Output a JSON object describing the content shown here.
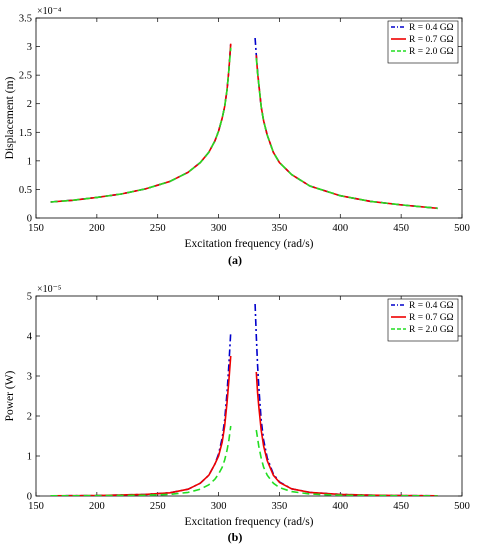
{
  "chart_data": [
    {
      "type": "line",
      "caption": "(a)",
      "xlabel": "Excitation frequency (rad/s)",
      "ylabel": "Displacement (m)",
      "y_multiplier": "×10⁻⁴",
      "xlim": [
        150,
        500
      ],
      "ylim": [
        0,
        3.5
      ],
      "xticks": [
        "150",
        "200",
        "250",
        "300",
        "350",
        "400",
        "450",
        "500"
      ],
      "yticks": [
        "0",
        "0.5",
        "1",
        "1.5",
        "2",
        "2.5",
        "3",
        "3.5"
      ],
      "legend_position": "top-right",
      "series": [
        {
          "name": "R = 0.4 GΩ",
          "color": "#0000cc",
          "style": "dash-dot",
          "segments": [
            {
              "x": [
                162,
                180,
                200,
                220,
                240,
                260,
                275,
                285,
                292,
                297,
                300,
                303,
                305,
                307,
                308.5,
                310
              ],
              "y": [
                0.28,
                0.31,
                0.36,
                0.42,
                0.51,
                0.64,
                0.8,
                0.97,
                1.15,
                1.35,
                1.52,
                1.75,
                1.95,
                2.25,
                2.6,
                3.05
              ]
            },
            {
              "x": [
                330,
                331.5,
                333,
                335,
                337,
                340,
                345,
                350,
                360,
                375,
                400,
                425,
                450,
                480
              ],
              "y": [
                3.15,
                2.7,
                2.35,
                1.95,
                1.7,
                1.45,
                1.15,
                0.97,
                0.76,
                0.56,
                0.39,
                0.29,
                0.23,
                0.17
              ]
            }
          ]
        },
        {
          "name": "R = 0.7 GΩ",
          "color": "#ee0000",
          "style": "solid",
          "segments": [
            {
              "x": [
                162,
                180,
                200,
                220,
                240,
                260,
                275,
                285,
                292,
                297,
                300,
                303,
                305,
                307,
                308.5,
                310
              ],
              "y": [
                0.28,
                0.31,
                0.36,
                0.42,
                0.51,
                0.64,
                0.8,
                0.97,
                1.15,
                1.35,
                1.52,
                1.75,
                1.95,
                2.25,
                2.6,
                3.05
              ]
            },
            {
              "x": [
                331,
                332,
                333,
                335,
                337,
                340,
                345,
                350,
                360,
                375,
                400,
                425,
                450,
                480
              ],
              "y": [
                2.85,
                2.55,
                2.35,
                1.95,
                1.7,
                1.45,
                1.15,
                0.97,
                0.76,
                0.56,
                0.39,
                0.29,
                0.23,
                0.17
              ]
            }
          ]
        },
        {
          "name": "R = 2.0 GΩ",
          "color": "#22dd22",
          "style": "dashed",
          "segments": [
            {
              "x": [
                162,
                180,
                200,
                220,
                240,
                260,
                275,
                285,
                292,
                297,
                300,
                303,
                305,
                307,
                308.5,
                310
              ],
              "y": [
                0.28,
                0.31,
                0.36,
                0.42,
                0.51,
                0.64,
                0.8,
                0.97,
                1.15,
                1.35,
                1.52,
                1.75,
                1.95,
                2.25,
                2.6,
                2.98
              ]
            },
            {
              "x": [
                331,
                332,
                333,
                335,
                337,
                340,
                345,
                350,
                360,
                375,
                400,
                425,
                450,
                480
              ],
              "y": [
                2.8,
                2.55,
                2.35,
                1.95,
                1.7,
                1.45,
                1.15,
                0.97,
                0.76,
                0.56,
                0.39,
                0.29,
                0.23,
                0.17
              ]
            }
          ]
        }
      ]
    },
    {
      "type": "line",
      "caption": "(b)",
      "xlabel": "Excitation frequency (rad/s)",
      "ylabel": "Power (W)",
      "y_multiplier": "×10⁻⁵",
      "xlim": [
        150,
        500
      ],
      "ylim": [
        0,
        5
      ],
      "xticks": [
        "150",
        "200",
        "250",
        "300",
        "350",
        "400",
        "450",
        "500"
      ],
      "yticks": [
        "0",
        "1",
        "2",
        "3",
        "4",
        "5"
      ],
      "legend_position": "top-right",
      "series": [
        {
          "name": "R = 0.4 GΩ",
          "color": "#0000cc",
          "style": "dash-dot",
          "segments": [
            {
              "x": [
                162,
                200,
                240,
                260,
                275,
                285,
                292,
                297,
                300,
                303,
                305,
                307,
                308.5,
                310
              ],
              "y": [
                0.005,
                0.01,
                0.04,
                0.08,
                0.17,
                0.32,
                0.52,
                0.8,
                1.05,
                1.45,
                1.9,
                2.6,
                3.3,
                4.1
              ]
            },
            {
              "x": [
                330,
                331,
                332,
                333,
                335,
                337,
                340,
                345,
                350,
                360,
                375,
                400,
                425,
                450,
                480
              ],
              "y": [
                4.8,
                4.0,
                3.3,
                2.75,
                1.9,
                1.4,
                0.95,
                0.55,
                0.35,
                0.18,
                0.09,
                0.04,
                0.02,
                0.01,
                0.005
              ]
            }
          ]
        },
        {
          "name": "R = 0.7 GΩ",
          "color": "#ee0000",
          "style": "solid",
          "segments": [
            {
              "x": [
                162,
                200,
                240,
                260,
                275,
                285,
                292,
                297,
                300,
                303,
                305,
                307,
                308.5,
                310
              ],
              "y": [
                0.005,
                0.01,
                0.04,
                0.08,
                0.17,
                0.32,
                0.52,
                0.8,
                1.0,
                1.35,
                1.75,
                2.35,
                2.9,
                3.5
              ]
            },
            {
              "x": [
                331,
                332,
                333,
                335,
                337,
                340,
                345,
                350,
                360,
                375,
                400,
                425,
                450,
                480
              ],
              "y": [
                3.1,
                2.6,
                2.25,
                1.65,
                1.25,
                0.88,
                0.52,
                0.34,
                0.18,
                0.09,
                0.04,
                0.02,
                0.01,
                0.005
              ]
            }
          ]
        },
        {
          "name": "R = 2.0 GΩ",
          "color": "#22dd22",
          "style": "dashed",
          "segments": [
            {
              "x": [
                162,
                200,
                240,
                260,
                275,
                285,
                292,
                297,
                300,
                303,
                305,
                307,
                308.5,
                310
              ],
              "y": [
                0.004,
                0.008,
                0.02,
                0.04,
                0.09,
                0.17,
                0.28,
                0.42,
                0.55,
                0.72,
                0.9,
                1.15,
                1.4,
                1.75
              ]
            },
            {
              "x": [
                331,
                332,
                333,
                335,
                337,
                340,
                345,
                350,
                360,
                375,
                400,
                425,
                450,
                480
              ],
              "y": [
                1.65,
                1.45,
                1.25,
                0.95,
                0.72,
                0.52,
                0.32,
                0.21,
                0.11,
                0.05,
                0.02,
                0.01,
                0.005,
                0.003
              ]
            }
          ]
        }
      ]
    }
  ]
}
